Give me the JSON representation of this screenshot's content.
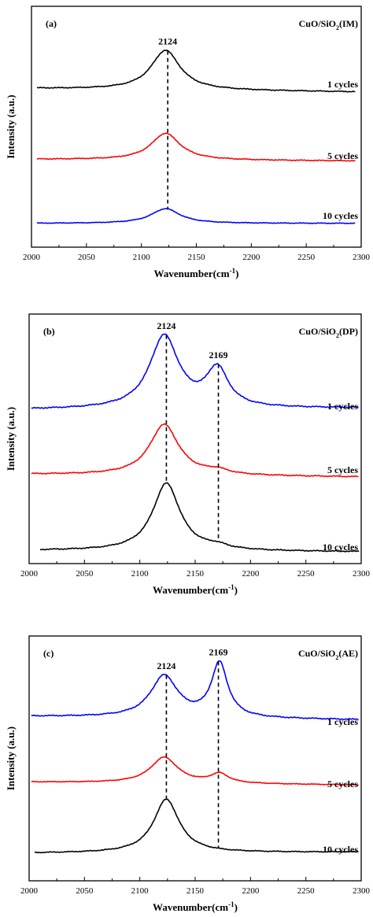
{
  "chart_data": [
    {
      "type": "line",
      "panel_label": "(a)",
      "catalyst_label": "CuO/SiO",
      "catalyst_sub": "2",
      "catalyst_tail": "(IM)",
      "xlabel": "Wavenumber(cm",
      "xlabel_sup": "-1",
      "xlabel_tail": ")",
      "ylabel": "Intensity (a.u.)",
      "xlim": [
        2000,
        2300
      ],
      "xticks": [
        "2000",
        "2050",
        "2100",
        "2150",
        "2200",
        "2250",
        "2300"
      ],
      "peak_markers": [
        {
          "label": "2124",
          "x": 2124
        }
      ],
      "series": [
        {
          "name": "1 cycles",
          "color": "#000000",
          "baseline": 0.16,
          "end": 0.1,
          "start_x": 2005,
          "end_x": 2295,
          "peaks": [
            {
              "center": 2122,
              "height": 0.7,
              "width": 16
            }
          ]
        },
        {
          "name": "5 cycles",
          "color": "#ff0000",
          "baseline": 0.14,
          "end": 0.11,
          "start_x": 2005,
          "end_x": 2295,
          "peaks": [
            {
              "center": 2122,
              "height": 0.5,
              "width": 16
            }
          ]
        },
        {
          "name": "10 cycles",
          "color": "#0000ff",
          "baseline": 0.1,
          "end": 0.1,
          "start_x": 2005,
          "end_x": 2295,
          "peaks": [
            {
              "center": 2122,
              "height": 0.36,
              "width": 16
            }
          ]
        }
      ]
    },
    {
      "type": "line",
      "panel_label": "(b)",
      "catalyst_label": "CuO/SiO",
      "catalyst_sub": "2",
      "catalyst_tail": "(DP)",
      "xlabel": "Wavenumber(cm",
      "xlabel_sup": "-1",
      "xlabel_tail": ")",
      "ylabel": "Intensity (a.u.)",
      "xlim": [
        2000,
        2300
      ],
      "xticks": [
        "2000",
        "2050",
        "2100",
        "2150",
        "2200",
        "2250",
        "2300"
      ],
      "peak_markers": [
        {
          "label": "2124",
          "x": 2124
        },
        {
          "label": "2169",
          "x": 2171
        }
      ],
      "series": [
        {
          "name": "1 cycles",
          "color": "#0000ff",
          "baseline": 0.1,
          "end": 0.12,
          "start_x": 2002,
          "end_x": 2298,
          "peaks": [
            {
              "center": 2122,
              "height": 0.96,
              "width": 16
            },
            {
              "center": 2170,
              "height": 0.5,
              "width": 12
            }
          ]
        },
        {
          "name": "5 cycles",
          "color": "#ff0000",
          "baseline": 0.1,
          "end": 0.06,
          "start_x": 2002,
          "end_x": 2298,
          "peaks": [
            {
              "center": 2122,
              "height": 0.78,
              "width": 16
            },
            {
              "center": 2170,
              "height": 0.06,
              "width": 12
            }
          ]
        },
        {
          "name": "10 cycles",
          "color": "#000000",
          "baseline": 0.1,
          "end": 0.08,
          "start_x": 2010,
          "end_x": 2298,
          "peaks": [
            {
              "center": 2124,
              "height": 1.0,
              "width": 15
            },
            {
              "center": 2170,
              "height": 0.05,
              "width": 12
            }
          ]
        }
      ]
    },
    {
      "type": "line",
      "panel_label": "(c)",
      "catalyst_label": "CuO/SiO",
      "catalyst_sub": "2",
      "catalyst_tail": "(AE)",
      "xlabel": "Wavenumber(cm",
      "xlabel_sup": "-1",
      "xlabel_tail": ")",
      "ylabel": "Intensity (a.u.)",
      "xlim": [
        2000,
        2300
      ],
      "xticks": [
        "2000",
        "2050",
        "2100",
        "2150",
        "2200",
        "2250",
        "2300"
      ],
      "peak_markers": [
        {
          "label": "2124",
          "x": 2124
        },
        {
          "label": "2169",
          "x": 2171
        }
      ],
      "series": [
        {
          "name": "1 cycles",
          "color": "#0000ff",
          "baseline": 0.1,
          "end": 0.05,
          "start_x": 2002,
          "end_x": 2298,
          "peaks": [
            {
              "center": 2122,
              "height": 0.6,
              "width": 15
            },
            {
              "center": 2172,
              "height": 0.78,
              "width": 9
            }
          ]
        },
        {
          "name": "5 cycles",
          "color": "#ff0000",
          "baseline": 0.12,
          "end": 0.05,
          "start_x": 2002,
          "end_x": 2298,
          "peaks": [
            {
              "center": 2122,
              "height": 0.62,
              "width": 15
            },
            {
              "center": 2172,
              "height": 0.22,
              "width": 10
            }
          ]
        },
        {
          "name": "10 cycles",
          "color": "#000000",
          "baseline": 0.06,
          "end": 0.08,
          "start_x": 2005,
          "end_x": 2298,
          "peaks": [
            {
              "center": 2124,
              "height": 1.0,
              "width": 14
            }
          ]
        }
      ]
    }
  ]
}
